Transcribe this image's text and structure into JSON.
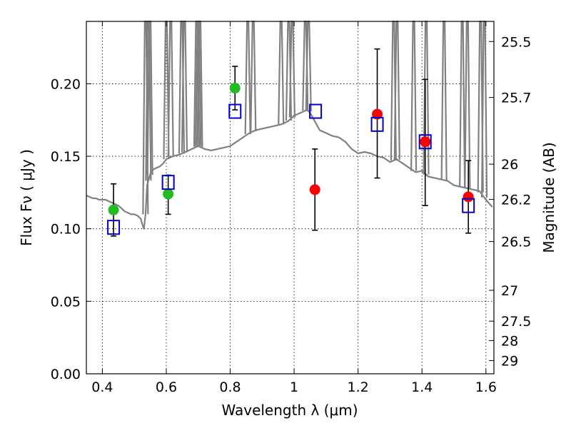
{
  "chart_data": {
    "type": "scatter",
    "xlabel": "Wavelength  λ (μm)",
    "ylabel": "Flux  Fν  ( μJy )",
    "ylabel_right": "Magnitude (AB)",
    "xlim": [
      0.35,
      1.625
    ],
    "ylim": [
      0.0,
      0.243
    ],
    "x_ticks": [
      0.4,
      0.6,
      0.8,
      1.0,
      1.2,
      1.4,
      1.6
    ],
    "x_tick_labels": [
      "0.4",
      "0.6",
      "0.8",
      "1",
      "1.2",
      "1.4",
      "1.6"
    ],
    "y_ticks": [
      0.0,
      0.05,
      0.1,
      0.15,
      0.2
    ],
    "y_tick_labels": [
      "0.00",
      "0.05",
      "0.10",
      "0.15",
      "0.20"
    ],
    "right_ticks": [
      {
        "label": "25.5",
        "mag": 25.5
      },
      {
        "label": "25.7",
        "mag": 25.7
      },
      {
        "label": "26",
        "mag": 26.0
      },
      {
        "label": "26.2",
        "mag": 26.2
      },
      {
        "label": "26.5",
        "mag": 26.5
      },
      {
        "label": "27",
        "mag": 27.0
      },
      {
        "label": "27.5",
        "mag": 27.5
      },
      {
        "label": "28",
        "mag": 28.0
      },
      {
        "label": "29",
        "mag": 29.0
      }
    ],
    "grid": true,
    "colors": {
      "spectrum": "#808080",
      "optical_points": "#22bb22",
      "nir_points": "#ff0000",
      "model_boxes": "#0000cc",
      "errorbars": "#000000"
    },
    "series": [
      {
        "kind": "line",
        "x": [
          0.35,
          0.36,
          0.37,
          0.38,
          0.39,
          0.4,
          0.41,
          0.42,
          0.43,
          0.44,
          0.45,
          0.46,
          0.47,
          0.48,
          0.49,
          0.5,
          0.51,
          0.52,
          0.525,
          0.53,
          0.535,
          0.54,
          0.55,
          0.56,
          0.57,
          0.58,
          0.59,
          0.6,
          0.62,
          0.64,
          0.66,
          0.68,
          0.7,
          0.72,
          0.74,
          0.76,
          0.78,
          0.8,
          0.82,
          0.84,
          0.86,
          0.88,
          0.9,
          0.92,
          0.94,
          0.96,
          0.98,
          1.0,
          1.02,
          1.04,
          1.05,
          1.06,
          1.08,
          1.1,
          1.12,
          1.14,
          1.16,
          1.18,
          1.2,
          1.22,
          1.24,
          1.26,
          1.28,
          1.3,
          1.32,
          1.34,
          1.36,
          1.38,
          1.4,
          1.42,
          1.44,
          1.46,
          1.48,
          1.5,
          1.52,
          1.54,
          1.56,
          1.58,
          1.6,
          1.62
        ],
        "y": [
          0.123,
          0.122,
          0.121,
          0.121,
          0.12,
          0.12,
          0.12,
          0.119,
          0.118,
          0.117,
          0.116,
          0.114,
          0.112,
          0.111,
          0.11,
          0.11,
          0.109,
          0.107,
          0.103,
          0.1,
          0.11,
          0.13,
          0.138,
          0.141,
          0.142,
          0.143,
          0.145,
          0.148,
          0.15,
          0.151,
          0.153,
          0.155,
          0.157,
          0.155,
          0.154,
          0.155,
          0.156,
          0.157,
          0.16,
          0.163,
          0.166,
          0.168,
          0.169,
          0.17,
          0.171,
          0.172,
          0.174,
          0.178,
          0.18,
          0.182,
          0.18,
          0.176,
          0.168,
          0.166,
          0.164,
          0.163,
          0.16,
          0.155,
          0.152,
          0.153,
          0.152,
          0.15,
          0.149,
          0.146,
          0.148,
          0.145,
          0.142,
          0.139,
          0.14,
          0.136,
          0.135,
          0.134,
          0.133,
          0.13,
          0.129,
          0.128,
          0.127,
          0.126,
          0.12,
          0.115
        ]
      },
      {
        "kind": "spikes",
        "x": [
          0.535,
          0.544,
          0.549,
          0.6,
          0.614,
          0.648,
          0.657,
          0.695,
          0.7,
          0.705,
          0.855,
          0.872,
          0.959,
          0.983,
          0.994,
          1.035,
          1.045,
          1.311,
          1.322,
          1.374,
          1.413,
          1.469,
          1.526,
          1.542,
          1.583,
          1.595
        ]
      },
      {
        "name": "",
        "kind": "points",
        "color": "green",
        "x": [
          0.435,
          0.606,
          0.815
        ],
        "y": [
          0.113,
          0.124,
          0.197
        ],
        "err_low": [
          0.018,
          0.014,
          0.015
        ],
        "err_high": [
          0.018,
          0.013,
          0.015
        ]
      },
      {
        "name": "",
        "kind": "points",
        "color": "red",
        "x": [
          1.065,
          1.26,
          1.41,
          1.545
        ],
        "y": [
          0.127,
          0.179,
          0.16,
          0.122
        ],
        "err_low": [
          0.028,
          0.044,
          0.044,
          0.025
        ],
        "err_high": [
          0.028,
          0.045,
          0.043,
          0.025
        ]
      },
      {
        "name": "",
        "kind": "boxes",
        "color": "blue",
        "x": [
          0.435,
          0.606,
          0.815,
          1.067,
          1.26,
          1.41,
          1.545
        ],
        "y": [
          0.101,
          0.132,
          0.181,
          0.181,
          0.172,
          0.16,
          0.116
        ]
      }
    ]
  }
}
